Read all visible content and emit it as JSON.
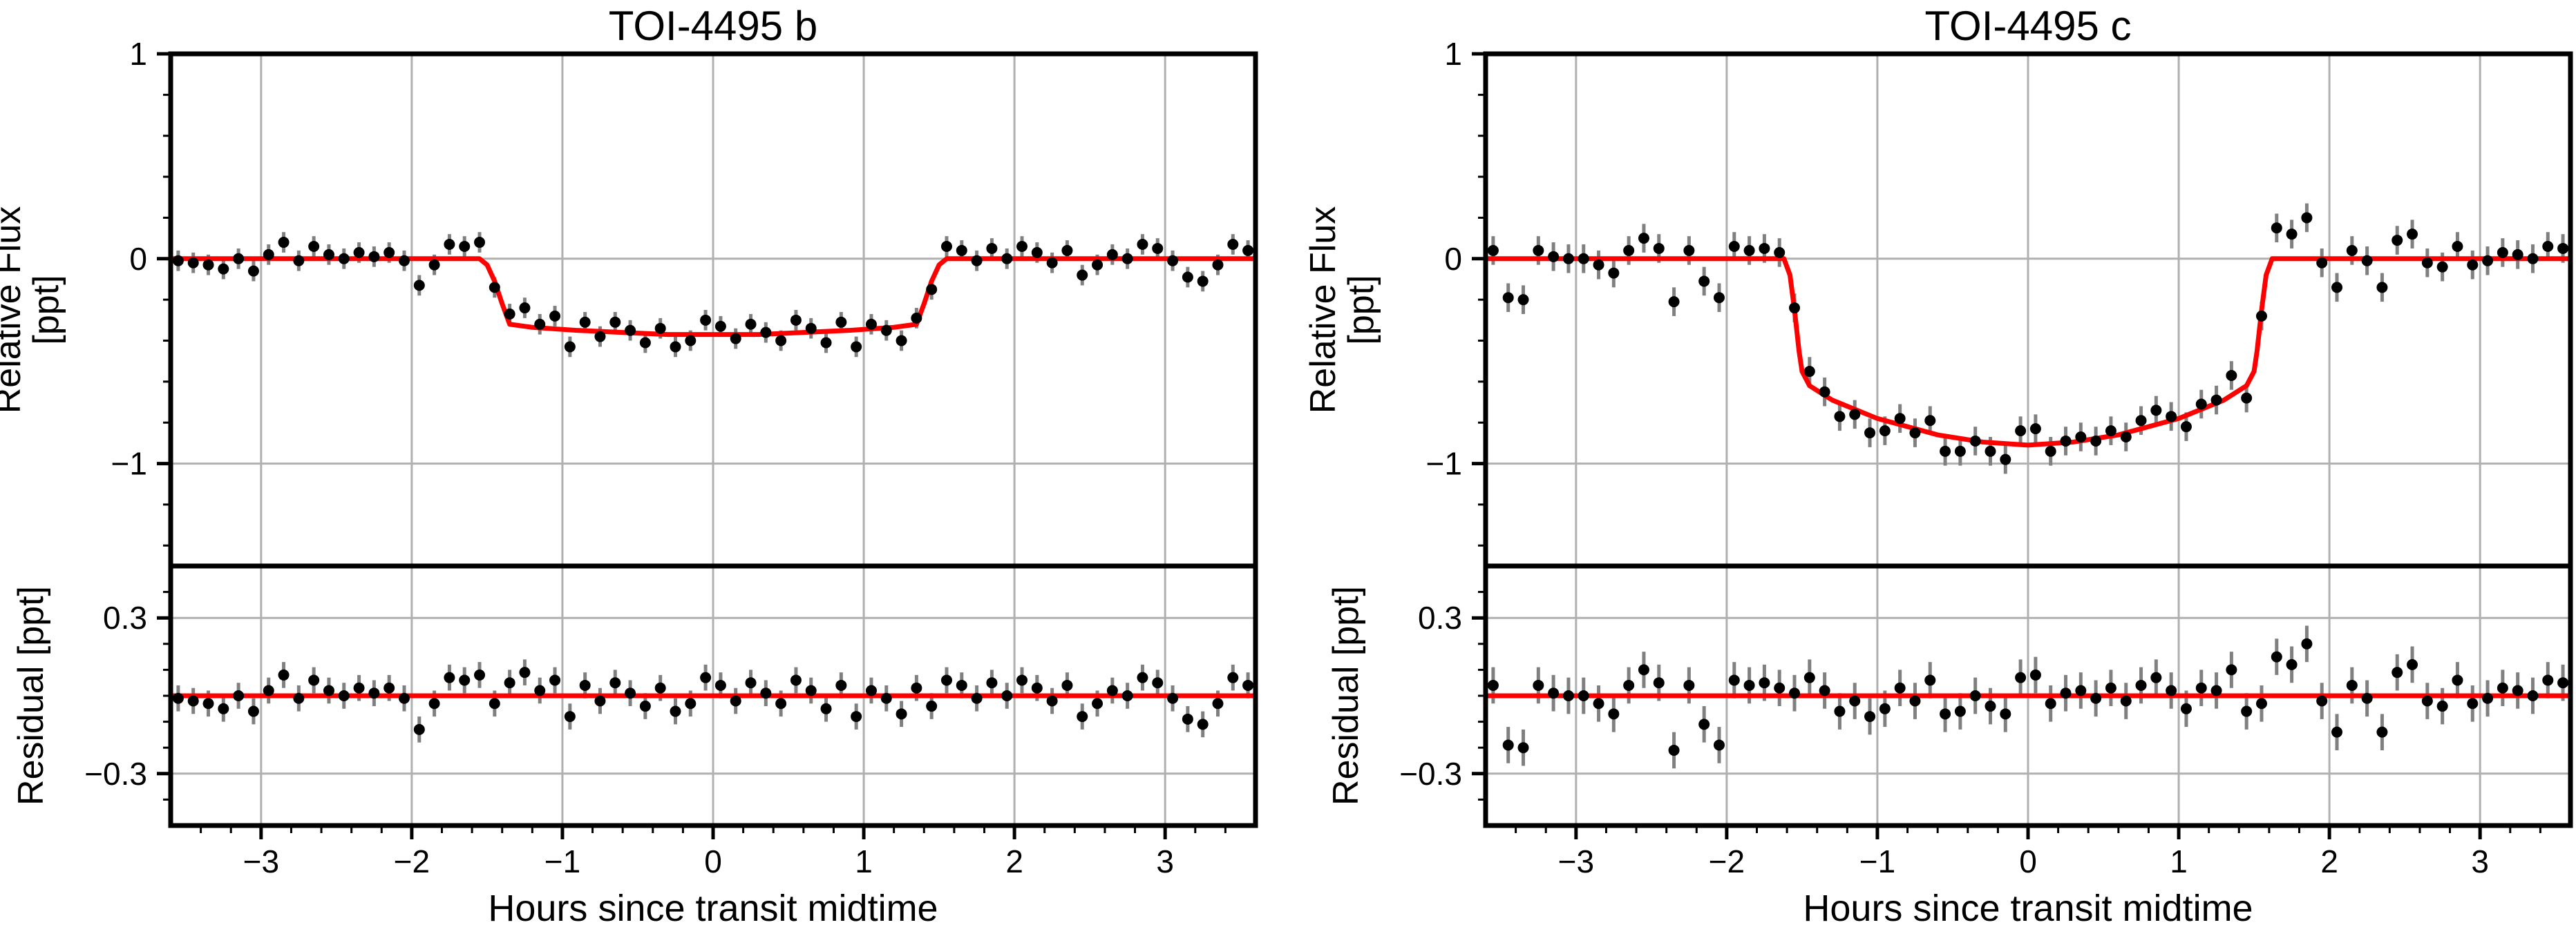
{
  "chart_data": [
    {
      "type": "scatter",
      "title": "TOI-4495 b",
      "xlabel": "Hours since transit midtime",
      "xlim": [
        -3.6,
        3.6
      ],
      "xticks": [
        {
          "value": -3,
          "label": "−3"
        },
        {
          "value": -2,
          "label": "−2"
        },
        {
          "value": -1,
          "label": "−1"
        },
        0,
        1,
        2,
        3
      ],
      "xminorticks": [
        -3.4,
        -3.2,
        -2.8,
        -2.6,
        -2.4,
        -2.2,
        -1.8,
        -1.6,
        -1.4,
        -1.2,
        -0.8,
        -0.6,
        -0.4,
        -0.2,
        0.2,
        0.4,
        0.6,
        0.8,
        1.2,
        1.4,
        1.6,
        1.8,
        2.2,
        2.4,
        2.6,
        2.8,
        3.2,
        3.4
      ],
      "grid": true,
      "x": [
        -3.55,
        -3.45,
        -3.35,
        -3.25,
        -3.15,
        -3.05,
        -2.95,
        -2.85,
        -2.75,
        -2.65,
        -2.55,
        -2.45,
        -2.35,
        -2.25,
        -2.15,
        -2.05,
        -1.95,
        -1.85,
        -1.75,
        -1.65,
        -1.55,
        -1.45,
        -1.35,
        -1.25,
        -1.15,
        -1.05,
        -0.95,
        -0.85,
        -0.75,
        -0.65,
        -0.55,
        -0.45,
        -0.35,
        -0.25,
        -0.15,
        -0.05,
        0.05,
        0.15,
        0.25,
        0.35,
        0.45,
        0.55,
        0.65,
        0.75,
        0.85,
        0.95,
        1.05,
        1.15,
        1.25,
        1.35,
        1.45,
        1.55,
        1.65,
        1.75,
        1.85,
        1.95,
        2.05,
        2.15,
        2.25,
        2.35,
        2.45,
        2.55,
        2.65,
        2.75,
        2.85,
        2.95,
        3.05,
        3.15,
        3.25,
        3.35,
        3.45,
        3.55
      ],
      "flux": {
        "ylabel": [
          "Relative Flux",
          "[ppt]"
        ],
        "ylim": [
          -1.5,
          1
        ],
        "yticks": [
          1,
          0,
          {
            "value": -1,
            "label": "−1"
          }
        ],
        "yminorticks": [
          0.8,
          0.6,
          0.4,
          0.2,
          -0.2,
          -0.4,
          -0.6,
          -0.8,
          -1.2,
          -1.4
        ],
        "values": [
          -0.01,
          -0.02,
          -0.03,
          -0.05,
          0.0,
          -0.06,
          0.02,
          0.08,
          -0.01,
          0.06,
          0.02,
          0.0,
          0.03,
          0.01,
          0.03,
          -0.01,
          -0.13,
          -0.03,
          0.07,
          0.06,
          0.08,
          -0.14,
          -0.27,
          -0.24,
          -0.32,
          -0.28,
          -0.43,
          -0.31,
          -0.38,
          -0.31,
          -0.35,
          -0.41,
          -0.34,
          -0.43,
          -0.4,
          -0.3,
          -0.33,
          -0.39,
          -0.32,
          -0.36,
          -0.4,
          -0.3,
          -0.34,
          -0.41,
          -0.31,
          -0.43,
          -0.32,
          -0.35,
          -0.4,
          -0.29,
          -0.15,
          0.06,
          0.04,
          -0.01,
          0.05,
          0.0,
          0.06,
          0.03,
          -0.02,
          0.04,
          -0.08,
          -0.03,
          0.02,
          0.0,
          0.07,
          0.05,
          -0.01,
          -0.09,
          -0.11,
          -0.03,
          0.07,
          0.04
        ],
        "error": 0.05,
        "color": "#000000",
        "error_color": "#808080",
        "model": {
          "x": [
            -3.6,
            -1.55,
            -1.5,
            -1.45,
            -1.4,
            -1.35,
            -1.2,
            -0.9,
            -0.6,
            -0.3,
            0,
            0.3,
            0.6,
            0.9,
            1.2,
            1.35,
            1.4,
            1.45,
            1.5,
            1.55,
            3.6
          ],
          "values": [
            0,
            0,
            -0.03,
            -0.11,
            -0.22,
            -0.32,
            -0.335,
            -0.35,
            -0.36,
            -0.37,
            -0.37,
            -0.37,
            -0.36,
            -0.35,
            -0.335,
            -0.32,
            -0.22,
            -0.11,
            -0.03,
            0,
            0
          ],
          "color": "#ff0000"
        }
      },
      "residual": {
        "ylabel": "Residual [ppt]",
        "ylim": [
          -0.5,
          0.5
        ],
        "yticks": [
          0.3,
          {
            "value": -0.3,
            "label": "−0.3"
          }
        ],
        "yminorticks": [
          0.4,
          0.2,
          0.1,
          0,
          -0.1,
          -0.2,
          -0.4
        ],
        "values": [
          -0.01,
          -0.02,
          -0.03,
          -0.05,
          0.0,
          -0.06,
          0.02,
          0.08,
          -0.01,
          0.06,
          0.02,
          0.0,
          0.03,
          0.01,
          0.03,
          -0.01,
          -0.13,
          -0.03,
          0.07,
          0.06,
          0.08,
          -0.03,
          0.05,
          0.09,
          0.02,
          0.06,
          -0.08,
          0.04,
          -0.02,
          0.05,
          0.01,
          -0.04,
          0.03,
          -0.06,
          -0.03,
          0.07,
          0.04,
          -0.02,
          0.05,
          0.01,
          -0.03,
          0.06,
          0.02,
          -0.05,
          0.04,
          -0.08,
          0.02,
          -0.01,
          -0.07,
          0.03,
          -0.04,
          0.06,
          0.04,
          -0.01,
          0.05,
          0.0,
          0.06,
          0.03,
          -0.02,
          0.04,
          -0.08,
          -0.03,
          0.02,
          0.0,
          0.07,
          0.05,
          -0.01,
          -0.09,
          -0.11,
          -0.03,
          0.07,
          0.04
        ],
        "error": 0.05,
        "color": "#000000",
        "error_color": "#808080",
        "model": {
          "x": [
            -3.6,
            3.6
          ],
          "values": [
            0,
            0
          ],
          "color": "#ff0000"
        }
      }
    },
    {
      "type": "scatter",
      "title": "TOI-4495 c",
      "xlabel": "Hours since transit midtime",
      "xlim": [
        -3.6,
        3.6
      ],
      "xticks": [
        {
          "value": -3,
          "label": "−3"
        },
        {
          "value": -2,
          "label": "−2"
        },
        {
          "value": -1,
          "label": "−1"
        },
        0,
        1,
        2,
        3
      ],
      "xminorticks": [
        -3.4,
        -3.2,
        -2.8,
        -2.6,
        -2.4,
        -2.2,
        -1.8,
        -1.6,
        -1.4,
        -1.2,
        -0.8,
        -0.6,
        -0.4,
        -0.2,
        0.2,
        0.4,
        0.6,
        0.8,
        1.2,
        1.4,
        1.6,
        1.8,
        2.2,
        2.4,
        2.6,
        2.8,
        3.2,
        3.4
      ],
      "grid": true,
      "x": [
        -3.55,
        -3.45,
        -3.35,
        -3.25,
        -3.15,
        -3.05,
        -2.95,
        -2.85,
        -2.75,
        -2.65,
        -2.55,
        -2.45,
        -2.35,
        -2.25,
        -2.15,
        -2.05,
        -1.95,
        -1.85,
        -1.75,
        -1.65,
        -1.55,
        -1.45,
        -1.35,
        -1.25,
        -1.15,
        -1.05,
        -0.95,
        -0.85,
        -0.75,
        -0.65,
        -0.55,
        -0.45,
        -0.35,
        -0.25,
        -0.15,
        -0.05,
        0.05,
        0.15,
        0.25,
        0.35,
        0.45,
        0.55,
        0.65,
        0.75,
        0.85,
        0.95,
        1.05,
        1.15,
        1.25,
        1.35,
        1.45,
        1.55,
        1.65,
        1.75,
        1.85,
        1.95,
        2.05,
        2.15,
        2.25,
        2.35,
        2.45,
        2.55,
        2.65,
        2.75,
        2.85,
        2.95,
        3.05,
        3.15,
        3.25,
        3.35,
        3.45,
        3.55
      ],
      "flux": {
        "ylabel": [
          "Relative Flux",
          "[ppt]"
        ],
        "ylim": [
          -1.5,
          1
        ],
        "yticks": [
          1,
          0,
          {
            "value": -1,
            "label": "−1"
          }
        ],
        "yminorticks": [
          0.8,
          0.6,
          0.4,
          0.2,
          -0.2,
          -0.4,
          -0.6,
          -0.8,
          -1.2,
          -1.4
        ],
        "values": [
          0.04,
          -0.19,
          -0.2,
          0.04,
          0.01,
          0.0,
          0.0,
          -0.03,
          -0.07,
          0.04,
          0.1,
          0.05,
          -0.21,
          0.04,
          -0.11,
          -0.19,
          0.06,
          0.04,
          0.05,
          0.03,
          -0.24,
          -0.55,
          -0.65,
          -0.77,
          -0.76,
          -0.85,
          -0.84,
          -0.78,
          -0.85,
          -0.79,
          -0.94,
          -0.94,
          -0.89,
          -0.94,
          -0.98,
          -0.84,
          -0.83,
          -0.94,
          -0.89,
          -0.87,
          -0.89,
          -0.84,
          -0.87,
          -0.79,
          -0.74,
          -0.77,
          -0.82,
          -0.71,
          -0.69,
          -0.57,
          -0.68,
          -0.28,
          0.15,
          0.12,
          0.2,
          -0.02,
          -0.14,
          0.04,
          -0.01,
          -0.14,
          0.09,
          0.12,
          -0.02,
          -0.04,
          0.06,
          -0.03,
          -0.01,
          0.03,
          0.02,
          0.0,
          0.06,
          0.05
        ],
        "error": 0.07,
        "color": "#000000",
        "error_color": "#808080",
        "model": {
          "x": [
            -3.6,
            -1.62,
            -1.58,
            -1.55,
            -1.52,
            -1.5,
            -1.45,
            -1.3,
            -1.0,
            -0.6,
            -0.3,
            0,
            0.3,
            0.6,
            1.0,
            1.3,
            1.45,
            1.5,
            1.52,
            1.55,
            1.58,
            1.62,
            3.6
          ],
          "values": [
            0,
            0,
            -0.08,
            -0.25,
            -0.45,
            -0.55,
            -0.62,
            -0.69,
            -0.78,
            -0.86,
            -0.895,
            -0.91,
            -0.895,
            -0.86,
            -0.78,
            -0.69,
            -0.62,
            -0.55,
            -0.45,
            -0.25,
            -0.08,
            0,
            0
          ],
          "color": "#ff0000"
        }
      },
      "residual": {
        "ylabel": "Residual [ppt]",
        "ylim": [
          -0.5,
          0.5
        ],
        "yticks": [
          0.3,
          {
            "value": -0.3,
            "label": "−0.3"
          }
        ],
        "yminorticks": [
          0.4,
          0.2,
          0.1,
          0,
          -0.1,
          -0.2,
          -0.4
        ],
        "values": [
          0.04,
          -0.19,
          -0.2,
          0.04,
          0.01,
          0.0,
          0.0,
          -0.03,
          -0.07,
          0.04,
          0.1,
          0.05,
          -0.21,
          0.04,
          -0.11,
          -0.19,
          0.06,
          0.04,
          0.05,
          0.03,
          0.01,
          0.07,
          0.02,
          -0.06,
          -0.02,
          -0.08,
          -0.05,
          0.03,
          -0.02,
          0.06,
          -0.07,
          -0.06,
          0.0,
          -0.04,
          -0.07,
          0.07,
          0.08,
          -0.03,
          0.01,
          0.02,
          -0.01,
          0.03,
          -0.02,
          0.04,
          0.07,
          0.02,
          -0.05,
          0.03,
          0.02,
          0.1,
          -0.06,
          -0.03,
          0.15,
          0.12,
          0.2,
          -0.02,
          -0.14,
          0.04,
          -0.01,
          -0.14,
          0.09,
          0.12,
          -0.02,
          -0.04,
          0.06,
          -0.03,
          -0.01,
          0.03,
          0.02,
          0.0,
          0.06,
          0.05
        ],
        "error": 0.07,
        "color": "#000000",
        "error_color": "#808080",
        "model": {
          "x": [
            -3.6,
            3.6
          ],
          "values": [
            0,
            0
          ],
          "color": "#ff0000"
        }
      }
    }
  ]
}
